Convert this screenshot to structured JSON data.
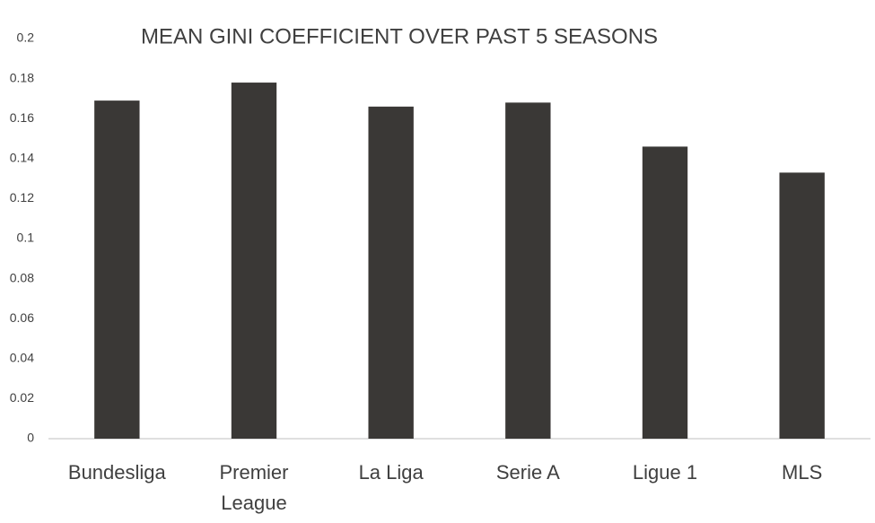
{
  "chart_data": {
    "type": "bar",
    "title": "MEAN GINI COEFFICIENT OVER PAST 5 SEASONS",
    "categories": [
      "Bundesliga",
      "Premier League",
      "La Liga",
      "Serie A",
      "Ligue 1",
      "MLS"
    ],
    "values": [
      0.169,
      0.178,
      0.166,
      0.168,
      0.146,
      0.133
    ],
    "color": "#3a3836",
    "ylim": [
      0,
      0.2
    ],
    "yticks": [
      0,
      0.02,
      0.04,
      0.06,
      0.08,
      0.1,
      0.12,
      0.14,
      0.16,
      0.18,
      0.2
    ],
    "grid": false
  }
}
